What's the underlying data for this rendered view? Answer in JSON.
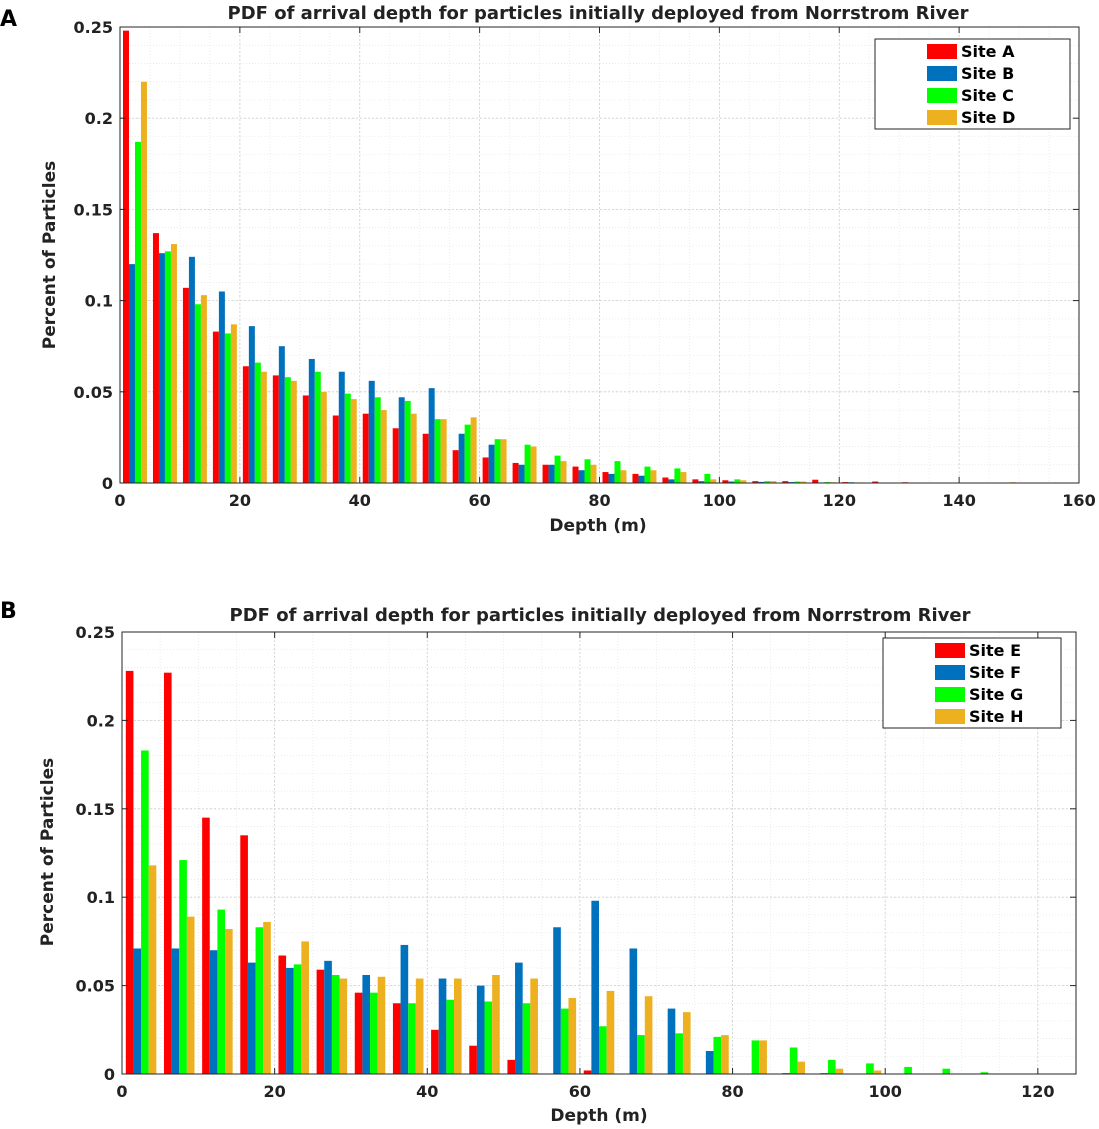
{
  "chart_data": [
    {
      "panel": "A",
      "type": "bar",
      "title": "PDF of arrival depth for particles initially deployed from Norrstrom River",
      "xlabel": "Depth (m)",
      "ylabel": "Percent of Particles",
      "xlim": [
        0,
        160
      ],
      "ylim": [
        0,
        0.25
      ],
      "xticks": [
        0,
        20,
        40,
        60,
        80,
        100,
        120,
        140,
        160
      ],
      "yticks": [
        0,
        0.05,
        0.1,
        0.15,
        0.2,
        0.25
      ],
      "ytick_labels": [
        "0",
        "0.05",
        "0.1",
        "0.15",
        "0.2",
        "0.25"
      ],
      "grid": true,
      "legend_position": "top-right",
      "bin_width": 5,
      "x": [
        2.5,
        7.5,
        12.5,
        17.5,
        22.5,
        27.5,
        32.5,
        37.5,
        42.5,
        47.5,
        52.5,
        57.5,
        62.5,
        67.5,
        72.5,
        77.5,
        82.5,
        87.5,
        92.5,
        97.5,
        102.5,
        107.5,
        112.5,
        117.5,
        122.5,
        127.5,
        132.5,
        137.5,
        142.5,
        147.5
      ],
      "series": [
        {
          "name": "Site A",
          "color": "#ff0000",
          "values": [
            0.248,
            0.137,
            0.107,
            0.083,
            0.064,
            0.059,
            0.048,
            0.037,
            0.038,
            0.03,
            0.027,
            0.018,
            0.014,
            0.011,
            0.01,
            0.009,
            0.006,
            0.005,
            0.003,
            0.002,
            0.0015,
            0.001,
            0.001,
            0.0018,
            0.0005,
            0.0008,
            0.0004,
            0,
            0,
            0
          ]
        },
        {
          "name": "Site B",
          "color": "#0072bd",
          "values": [
            0.12,
            0.126,
            0.124,
            0.105,
            0.086,
            0.075,
            0.068,
            0.061,
            0.056,
            0.047,
            0.052,
            0.027,
            0.021,
            0.01,
            0.01,
            0.007,
            0.005,
            0.004,
            0.002,
            0.001,
            0.0008,
            0.0006,
            0.0005,
            0.0003,
            0.0004,
            0.0002,
            0,
            0,
            0,
            0
          ]
        },
        {
          "name": "Site C",
          "color": "#00ff00",
          "values": [
            0.187,
            0.127,
            0.098,
            0.082,
            0.066,
            0.058,
            0.061,
            0.049,
            0.047,
            0.045,
            0.035,
            0.032,
            0.024,
            0.021,
            0.015,
            0.013,
            0.012,
            0.009,
            0.008,
            0.005,
            0.002,
            0.001,
            0.0008,
            0.0005,
            0.0003,
            0,
            0,
            0,
            0,
            0
          ]
        },
        {
          "name": "Site D",
          "color": "#edb120",
          "values": [
            0.22,
            0.131,
            0.103,
            0.087,
            0.061,
            0.056,
            0.05,
            0.046,
            0.04,
            0.038,
            0.035,
            0.036,
            0.024,
            0.02,
            0.012,
            0.01,
            0.007,
            0.007,
            0.006,
            0.002,
            0.0015,
            0.001,
            0.0008,
            0.0004,
            0.0003,
            0.0002,
            0,
            0,
            0,
            0.0004
          ]
        }
      ]
    },
    {
      "panel": "B",
      "type": "bar",
      "title": "PDF of arrival depth for particles initially deployed from Norrstrom River",
      "xlabel": "Depth (m)",
      "ylabel": "Percent of Particles",
      "xlim": [
        0,
        125
      ],
      "ylim": [
        0,
        0.25
      ],
      "xticks": [
        0,
        20,
        40,
        60,
        80,
        100,
        120
      ],
      "yticks": [
        0,
        0.05,
        0.1,
        0.15,
        0.2,
        0.25
      ],
      "ytick_labels": [
        "0",
        "0.05",
        "0.1",
        "0.15",
        "0.2",
        "0.25"
      ],
      "grid": true,
      "legend_position": "top-right",
      "bin_width": 5,
      "x": [
        2.5,
        7.5,
        12.5,
        17.5,
        22.5,
        27.5,
        32.5,
        37.5,
        42.5,
        47.5,
        52.5,
        57.5,
        62.5,
        67.5,
        72.5,
        77.5,
        82.5,
        87.5,
        92.5,
        97.5,
        102.5,
        107.5,
        112.5,
        117.5
      ],
      "series": [
        {
          "name": "Site E",
          "color": "#ff0000",
          "values": [
            0.228,
            0.227,
            0.145,
            0.135,
            0.067,
            0.059,
            0.046,
            0.04,
            0.025,
            0.016,
            0.008,
            0,
            0.002,
            0,
            0,
            0,
            0,
            0,
            0,
            0,
            0,
            0,
            0,
            0
          ]
        },
        {
          "name": "Site F",
          "color": "#0072bd",
          "values": [
            0.071,
            0.071,
            0.07,
            0.063,
            0.06,
            0.064,
            0.056,
            0.073,
            0.054,
            0.05,
            0.063,
            0.083,
            0.098,
            0.071,
            0.037,
            0.013,
            0,
            0.0005,
            0.0005,
            0,
            0,
            0,
            0,
            0
          ]
        },
        {
          "name": "Site G",
          "color": "#00ff00",
          "values": [
            0.183,
            0.121,
            0.093,
            0.083,
            0.062,
            0.056,
            0.046,
            0.04,
            0.042,
            0.041,
            0.04,
            0.037,
            0.027,
            0.022,
            0.023,
            0.021,
            0.019,
            0.015,
            0.008,
            0.006,
            0.004,
            0.003,
            0.001,
            0
          ]
        },
        {
          "name": "Site H",
          "color": "#edb120",
          "values": [
            0.118,
            0.089,
            0.082,
            0.086,
            0.075,
            0.054,
            0.055,
            0.054,
            0.054,
            0.056,
            0.054,
            0.043,
            0.047,
            0.044,
            0.035,
            0.022,
            0.019,
            0.007,
            0.003,
            0.002,
            0,
            0,
            0,
            0
          ]
        }
      ]
    }
  ],
  "panels": [
    {
      "letter": "A",
      "title": "PDF of arrival depth for particles initially deployed from Norrstrom River",
      "xlabel": "Depth (m)",
      "ylabel": "Percent of Particles"
    },
    {
      "letter": "B",
      "title": "PDF of arrival depth for particles initially deployed from Norrstrom River",
      "xlabel": "Depth (m)",
      "ylabel": "Percent of Particles"
    }
  ]
}
